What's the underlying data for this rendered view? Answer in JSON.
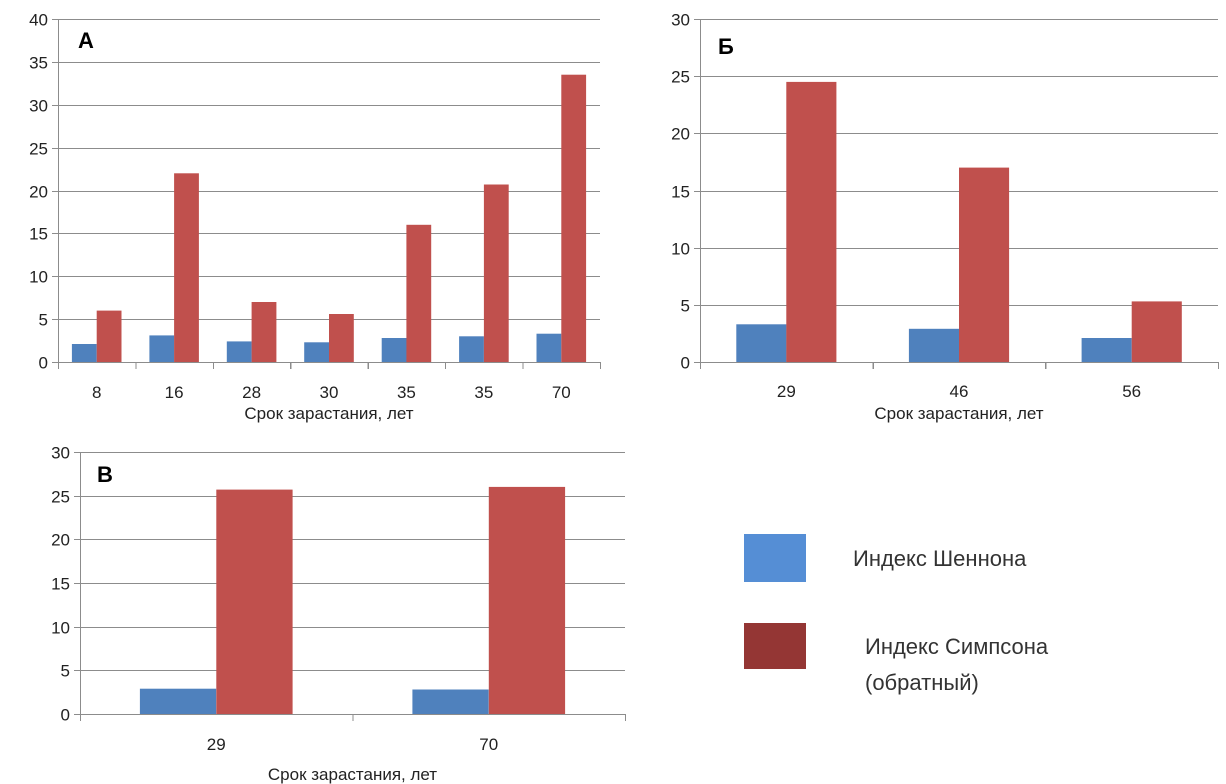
{
  "colors": {
    "shannon": "#4f81bd",
    "simpson": "#c0504d",
    "legend_simpson": "#943634",
    "legend_shannon": "#558ed5"
  },
  "legend": {
    "shannon_label": "Индекс Шеннона",
    "simpson_label_line1": "Индекс Симпсона",
    "simpson_label_line2": "(обратный)"
  },
  "chart_data": [
    {
      "type": "bar",
      "panel_label": "А",
      "title": "",
      "xlabel": "Срок зарастания, лет",
      "ylabel": "",
      "ylim": [
        0,
        40
      ],
      "yticks": [
        0,
        5,
        10,
        15,
        20,
        25,
        30,
        35,
        40
      ],
      "grid": true,
      "categories": [
        "8",
        "16",
        "28",
        "30",
        "35",
        "35",
        "70"
      ],
      "series": [
        {
          "name": "Индекс Шеннона",
          "values": [
            2.1,
            3.1,
            2.4,
            2.3,
            2.8,
            3.0,
            3.3
          ]
        },
        {
          "name": "Индекс Симпсона (обратный)",
          "values": [
            6.0,
            22.0,
            7.0,
            5.6,
            16.0,
            20.7,
            33.5
          ]
        }
      ]
    },
    {
      "type": "bar",
      "panel_label": "Б",
      "title": "",
      "xlabel": "Срок зарастания, лет",
      "ylabel": "",
      "ylim": [
        0,
        30
      ],
      "yticks": [
        0,
        5,
        10,
        15,
        20,
        25,
        30
      ],
      "grid": true,
      "categories": [
        "29",
        "46",
        "56"
      ],
      "series": [
        {
          "name": "Индекс Шеннона",
          "values": [
            3.3,
            2.9,
            2.1
          ]
        },
        {
          "name": "Индекс Симпсона (обратный)",
          "values": [
            24.5,
            17.0,
            5.3
          ]
        }
      ]
    },
    {
      "type": "bar",
      "panel_label": "В",
      "title": "",
      "xlabel": "Срок зарастания, лет",
      "ylabel": "",
      "ylim": [
        0,
        30
      ],
      "yticks": [
        0,
        5,
        10,
        15,
        20,
        25,
        30
      ],
      "grid": true,
      "categories": [
        "29",
        "70"
      ],
      "series": [
        {
          "name": "Индекс Шеннона",
          "values": [
            2.9,
            2.8
          ]
        },
        {
          "name": "Индекс Симпсона (обратный)",
          "values": [
            25.7,
            26.0
          ]
        }
      ]
    }
  ]
}
